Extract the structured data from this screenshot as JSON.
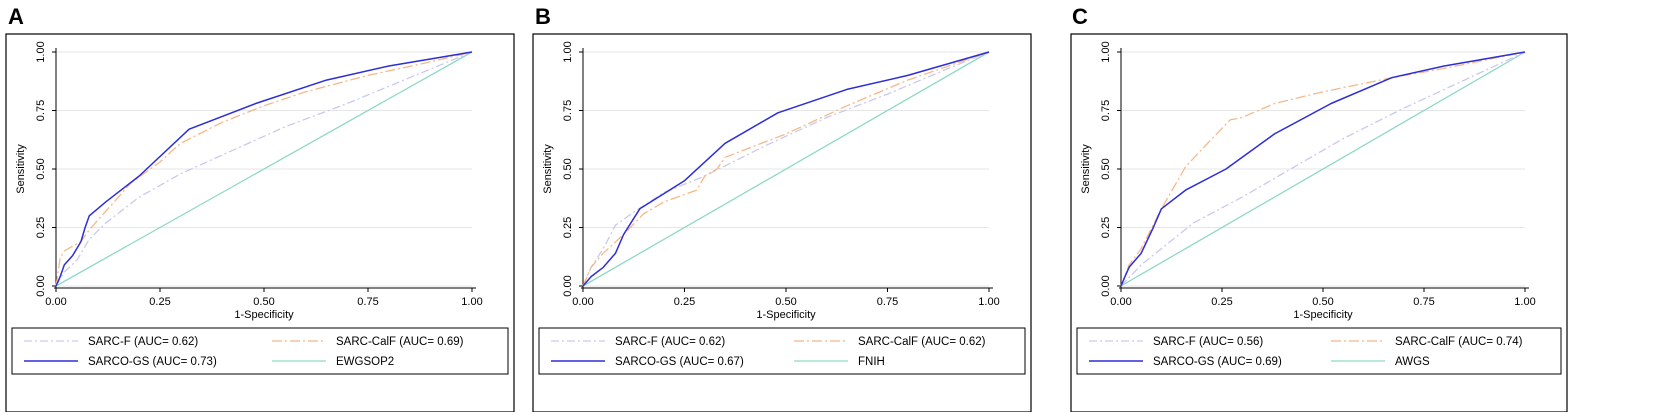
{
  "chart_data": [
    {
      "type": "line",
      "panel_label": "A",
      "xlabel": "1-Specificity",
      "ylabel": "Sensitivity",
      "xlim": [
        0,
        1
      ],
      "ylim": [
        0,
        1
      ],
      "xticks": [
        "0.00",
        "0.25",
        "0.50",
        "0.75",
        "1.00"
      ],
      "yticks": [
        "0.00",
        "0.25",
        "0.50",
        "0.75",
        "1.00"
      ],
      "grid": true,
      "legend_position": "bottom",
      "series": [
        {
          "name": "SARC-F (AUC= 0.62)",
          "color": "#c9c9ef",
          "dash": "8,3,2,3",
          "x": [
            0,
            0.02,
            0.05,
            0.08,
            0.12,
            0.2,
            0.3,
            0.45,
            0.55,
            0.7,
            0.85,
            1.0
          ],
          "y": [
            0,
            0.06,
            0.11,
            0.2,
            0.27,
            0.38,
            0.48,
            0.6,
            0.68,
            0.78,
            0.89,
            1.0
          ]
        },
        {
          "name": "SARC-CalF (AUC= 0.69)",
          "color": "#f5b88a",
          "dash": "10,3,2,3",
          "x": [
            0,
            0.01,
            0.02,
            0.04,
            0.06,
            0.08,
            0.12,
            0.18,
            0.25,
            0.28,
            0.3,
            0.4,
            0.5,
            0.6,
            0.75,
            0.88,
            1.0
          ],
          "y": [
            0,
            0.12,
            0.15,
            0.17,
            0.19,
            0.24,
            0.32,
            0.44,
            0.53,
            0.58,
            0.61,
            0.7,
            0.77,
            0.83,
            0.9,
            0.95,
            1.0
          ]
        },
        {
          "name": "SARCO-GS (AUC= 0.73)",
          "color": "#2e2ed6",
          "dash": "",
          "x": [
            0,
            0.01,
            0.02,
            0.04,
            0.06,
            0.07,
            0.08,
            0.12,
            0.2,
            0.32,
            0.48,
            0.65,
            0.8,
            1.0
          ],
          "y": [
            0,
            0.04,
            0.09,
            0.13,
            0.19,
            0.25,
            0.3,
            0.36,
            0.47,
            0.67,
            0.78,
            0.88,
            0.94,
            1.0
          ]
        },
        {
          "name": "EWGSOP2",
          "color": "#8fd9c4",
          "dash": "",
          "x": [
            0,
            1
          ],
          "y": [
            0,
            1
          ]
        }
      ]
    },
    {
      "type": "line",
      "panel_label": "B",
      "xlabel": "1-Specificity",
      "ylabel": "Sensitivity",
      "xlim": [
        0,
        1
      ],
      "ylim": [
        0,
        1
      ],
      "xticks": [
        "0.00",
        "0.25",
        "0.50",
        "0.75",
        "1.00"
      ],
      "yticks": [
        "0.00",
        "0.25",
        "0.50",
        "0.75",
        "1.00"
      ],
      "grid": true,
      "legend_position": "bottom",
      "series": [
        {
          "name": "SARC-F (AUC= 0.62)",
          "color": "#c9c9ef",
          "dash": "8,3,2,3",
          "x": [
            0,
            0.02,
            0.05,
            0.08,
            0.12,
            0.2,
            0.3,
            0.45,
            0.6,
            0.75,
            0.9,
            1.0
          ],
          "y": [
            0,
            0.08,
            0.16,
            0.26,
            0.31,
            0.4,
            0.47,
            0.6,
            0.72,
            0.82,
            0.93,
            1.0
          ]
        },
        {
          "name": "SARC-CalF (AUC= 0.62)",
          "color": "#f5b88a",
          "dash": "10,3,2,3",
          "x": [
            0,
            0.02,
            0.05,
            0.1,
            0.15,
            0.2,
            0.28,
            0.3,
            0.33,
            0.35,
            0.5,
            0.65,
            0.8,
            1.0
          ],
          "y": [
            0,
            0.08,
            0.14,
            0.22,
            0.31,
            0.36,
            0.41,
            0.47,
            0.5,
            0.55,
            0.65,
            0.77,
            0.88,
            1.0
          ]
        },
        {
          "name": "SARCO-GS (AUC= 0.67)",
          "color": "#2e2ed6",
          "dash": "",
          "x": [
            0,
            0.02,
            0.05,
            0.08,
            0.1,
            0.14,
            0.25,
            0.35,
            0.48,
            0.65,
            0.8,
            1.0
          ],
          "y": [
            0,
            0.04,
            0.08,
            0.14,
            0.22,
            0.33,
            0.45,
            0.61,
            0.74,
            0.84,
            0.9,
            1.0
          ]
        },
        {
          "name": "FNIH",
          "color": "#8fd9c4",
          "dash": "",
          "x": [
            0,
            1
          ],
          "y": [
            0,
            1
          ]
        }
      ]
    },
    {
      "type": "line",
      "panel_label": "C",
      "xlabel": "1-Specificity",
      "ylabel": "Sensitivity",
      "xlim": [
        0,
        1
      ],
      "ylim": [
        0,
        1
      ],
      "xticks": [
        "0.00",
        "0.25",
        "0.50",
        "0.75",
        "1.00"
      ],
      "yticks": [
        "0.00",
        "0.25",
        "0.50",
        "0.75",
        "1.00"
      ],
      "grid": true,
      "legend_position": "bottom",
      "series": [
        {
          "name": "SARC-F (AUC= 0.56)",
          "color": "#c9c9ef",
          "dash": "8,3,2,3",
          "x": [
            0,
            0.05,
            0.1,
            0.18,
            0.3,
            0.42,
            0.55,
            0.7,
            0.85,
            1.0
          ],
          "y": [
            0,
            0.09,
            0.16,
            0.27,
            0.38,
            0.5,
            0.63,
            0.76,
            0.88,
            1.0
          ]
        },
        {
          "name": "SARC-CalF (AUC= 0.74)",
          "color": "#f5b88a",
          "dash": "10,3,2,3",
          "x": [
            0,
            0.02,
            0.05,
            0.1,
            0.16,
            0.22,
            0.27,
            0.3,
            0.38,
            0.5,
            0.67,
            0.8,
            1.0
          ],
          "y": [
            0,
            0.09,
            0.16,
            0.33,
            0.51,
            0.62,
            0.71,
            0.72,
            0.78,
            0.83,
            0.89,
            0.93,
            1.0
          ]
        },
        {
          "name": "SARCO-GS (AUC= 0.69)",
          "color": "#2e2ed6",
          "dash": "",
          "x": [
            0,
            0.01,
            0.02,
            0.05,
            0.08,
            0.1,
            0.16,
            0.26,
            0.38,
            0.52,
            0.67,
            0.8,
            1.0
          ],
          "y": [
            0,
            0.04,
            0.08,
            0.14,
            0.25,
            0.33,
            0.41,
            0.5,
            0.65,
            0.78,
            0.89,
            0.94,
            1.0
          ]
        },
        {
          "name": "AWGS",
          "color": "#8fd9c4",
          "dash": "",
          "x": [
            0,
            1
          ],
          "y": [
            0,
            1
          ]
        }
      ]
    }
  ]
}
